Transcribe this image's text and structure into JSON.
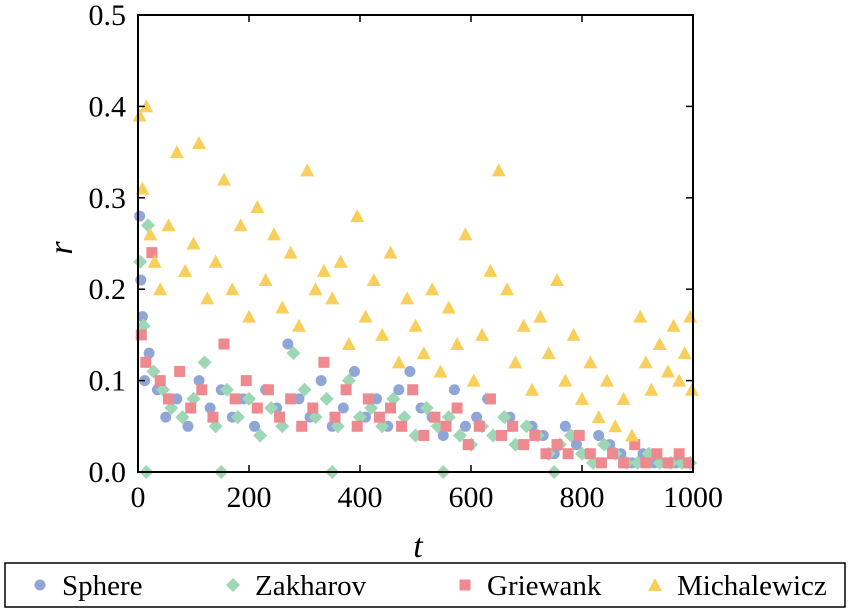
{
  "chart_data": {
    "type": "scatter",
    "title": "",
    "xlabel": "t",
    "ylabel": "r",
    "xlim": [
      0,
      1000
    ],
    "ylim": [
      0,
      0.5
    ],
    "x_ticks": [
      0,
      200,
      400,
      600,
      800,
      1000
    ],
    "y_ticks": [
      0.0,
      0.1,
      0.2,
      0.3,
      0.4,
      0.5
    ],
    "x_tick_labels": [
      "0",
      "200",
      "400",
      "600",
      "800",
      "1000"
    ],
    "y_tick_labels": [
      "0.0",
      "0.1",
      "0.2",
      "0.3",
      "0.4",
      "0.5"
    ],
    "grid": false,
    "legend_position": "bottom",
    "series": [
      {
        "name": "Sphere",
        "marker": "circle",
        "color": "#8FA6D6",
        "points": [
          [
            3,
            0.28
          ],
          [
            5,
            0.21
          ],
          [
            8,
            0.17
          ],
          [
            12,
            0.1
          ],
          [
            20,
            0.13
          ],
          [
            35,
            0.09
          ],
          [
            50,
            0.06
          ],
          [
            70,
            0.08
          ],
          [
            90,
            0.05
          ],
          [
            110,
            0.1
          ],
          [
            130,
            0.07
          ],
          [
            150,
            0.09
          ],
          [
            170,
            0.06
          ],
          [
            190,
            0.08
          ],
          [
            210,
            0.05
          ],
          [
            230,
            0.09
          ],
          [
            250,
            0.07
          ],
          [
            270,
            0.14
          ],
          [
            290,
            0.08
          ],
          [
            310,
            0.06
          ],
          [
            330,
            0.1
          ],
          [
            350,
            0.05
          ],
          [
            370,
            0.07
          ],
          [
            390,
            0.11
          ],
          [
            410,
            0.06
          ],
          [
            430,
            0.08
          ],
          [
            450,
            0.05
          ],
          [
            470,
            0.09
          ],
          [
            490,
            0.11
          ],
          [
            510,
            0.07
          ],
          [
            530,
            0.06
          ],
          [
            550,
            0.04
          ],
          [
            570,
            0.09
          ],
          [
            590,
            0.05
          ],
          [
            610,
            0.06
          ],
          [
            630,
            0.08
          ],
          [
            650,
            0.04
          ],
          [
            670,
            0.06
          ],
          [
            690,
            0.03
          ],
          [
            710,
            0.05
          ],
          [
            730,
            0.04
          ],
          [
            750,
            0.02
          ],
          [
            770,
            0.05
          ],
          [
            790,
            0.03
          ],
          [
            810,
            0.02
          ],
          [
            830,
            0.04
          ],
          [
            850,
            0.03
          ],
          [
            870,
            0.02
          ],
          [
            890,
            0.01
          ],
          [
            910,
            0.02
          ],
          [
            930,
            0.01
          ],
          [
            950,
            0.01
          ],
          [
            970,
            0.01
          ],
          [
            990,
            0.01
          ]
        ]
      },
      {
        "name": "Zakharov",
        "marker": "diamond",
        "color": "#9DD7B5",
        "points": [
          [
            4,
            0.23
          ],
          [
            10,
            0.16
          ],
          [
            18,
            0.27
          ],
          [
            28,
            0.11
          ],
          [
            45,
            0.09
          ],
          [
            60,
            0.07
          ],
          [
            80,
            0.06
          ],
          [
            100,
            0.08
          ],
          [
            120,
            0.12
          ],
          [
            140,
            0.05
          ],
          [
            160,
            0.09
          ],
          [
            180,
            0.06
          ],
          [
            200,
            0.08
          ],
          [
            220,
            0.04
          ],
          [
            240,
            0.07
          ],
          [
            260,
            0.05
          ],
          [
            280,
            0.13
          ],
          [
            300,
            0.09
          ],
          [
            320,
            0.06
          ],
          [
            340,
            0.08
          ],
          [
            360,
            0.05
          ],
          [
            380,
            0.1
          ],
          [
            400,
            0.06
          ],
          [
            420,
            0.07
          ],
          [
            440,
            0.05
          ],
          [
            460,
            0.08
          ],
          [
            480,
            0.06
          ],
          [
            500,
            0.04
          ],
          [
            520,
            0.07
          ],
          [
            540,
            0.05
          ],
          [
            560,
            0.06
          ],
          [
            580,
            0.04
          ],
          [
            600,
            0.03
          ],
          [
            620,
            0.05
          ],
          [
            640,
            0.04
          ],
          [
            660,
            0.06
          ],
          [
            680,
            0.03
          ],
          [
            700,
            0.05
          ],
          [
            720,
            0.04
          ],
          [
            740,
            0.02
          ],
          [
            760,
            0.03
          ],
          [
            780,
            0.04
          ],
          [
            800,
            0.02
          ],
          [
            820,
            0.01
          ],
          [
            840,
            0.03
          ],
          [
            860,
            0.02
          ],
          [
            880,
            0.01
          ],
          [
            900,
            0.01
          ],
          [
            920,
            0.02
          ],
          [
            940,
            0.01
          ],
          [
            960,
            0.01
          ],
          [
            980,
            0.01
          ],
          [
            995,
            0.01
          ],
          [
            15,
            0.0
          ],
          [
            150,
            0.0
          ],
          [
            350,
            0.0
          ],
          [
            550,
            0.0
          ],
          [
            750,
            0.0
          ]
        ]
      },
      {
        "name": "Griewank",
        "marker": "square",
        "color": "#EE8A8F",
        "points": [
          [
            6,
            0.15
          ],
          [
            14,
            0.12
          ],
          [
            25,
            0.24
          ],
          [
            40,
            0.1
          ],
          [
            55,
            0.08
          ],
          [
            75,
            0.11
          ],
          [
            95,
            0.07
          ],
          [
            115,
            0.09
          ],
          [
            135,
            0.06
          ],
          [
            155,
            0.14
          ],
          [
            175,
            0.08
          ],
          [
            195,
            0.1
          ],
          [
            215,
            0.07
          ],
          [
            235,
            0.09
          ],
          [
            255,
            0.06
          ],
          [
            275,
            0.08
          ],
          [
            295,
            0.05
          ],
          [
            315,
            0.07
          ],
          [
            335,
            0.12
          ],
          [
            355,
            0.06
          ],
          [
            375,
            0.09
          ],
          [
            395,
            0.05
          ],
          [
            415,
            0.08
          ],
          [
            435,
            0.06
          ],
          [
            455,
            0.07
          ],
          [
            475,
            0.05
          ],
          [
            495,
            0.09
          ],
          [
            515,
            0.04
          ],
          [
            535,
            0.06
          ],
          [
            555,
            0.05
          ],
          [
            575,
            0.07
          ],
          [
            595,
            0.03
          ],
          [
            615,
            0.05
          ],
          [
            635,
            0.08
          ],
          [
            655,
            0.04
          ],
          [
            675,
            0.05
          ],
          [
            695,
            0.03
          ],
          [
            715,
            0.04
          ],
          [
            735,
            0.02
          ],
          [
            755,
            0.03
          ],
          [
            775,
            0.02
          ],
          [
            795,
            0.04
          ],
          [
            815,
            0.02
          ],
          [
            835,
            0.01
          ],
          [
            855,
            0.02
          ],
          [
            875,
            0.01
          ],
          [
            895,
            0.03
          ],
          [
            915,
            0.01
          ],
          [
            935,
            0.02
          ],
          [
            955,
            0.01
          ],
          [
            975,
            0.02
          ],
          [
            992,
            0.01
          ]
        ]
      },
      {
        "name": "Michalewicz",
        "marker": "triangle",
        "color": "#F9CF5B",
        "points": [
          [
            3,
            0.39
          ],
          [
            8,
            0.31
          ],
          [
            15,
            0.4
          ],
          [
            22,
            0.26
          ],
          [
            30,
            0.23
          ],
          [
            40,
            0.2
          ],
          [
            55,
            0.27
          ],
          [
            70,
            0.35
          ],
          [
            85,
            0.22
          ],
          [
            100,
            0.25
          ],
          [
            110,
            0.36
          ],
          [
            125,
            0.19
          ],
          [
            140,
            0.23
          ],
          [
            155,
            0.32
          ],
          [
            170,
            0.2
          ],
          [
            185,
            0.27
          ],
          [
            200,
            0.17
          ],
          [
            215,
            0.29
          ],
          [
            230,
            0.21
          ],
          [
            245,
            0.26
          ],
          [
            260,
            0.18
          ],
          [
            275,
            0.24
          ],
          [
            290,
            0.16
          ],
          [
            305,
            0.33
          ],
          [
            320,
            0.2
          ],
          [
            335,
            0.22
          ],
          [
            350,
            0.19
          ],
          [
            365,
            0.23
          ],
          [
            380,
            0.14
          ],
          [
            395,
            0.28
          ],
          [
            410,
            0.17
          ],
          [
            425,
            0.21
          ],
          [
            440,
            0.15
          ],
          [
            455,
            0.24
          ],
          [
            470,
            0.12
          ],
          [
            485,
            0.19
          ],
          [
            500,
            0.16
          ],
          [
            515,
            0.13
          ],
          [
            530,
            0.2
          ],
          [
            545,
            0.11
          ],
          [
            560,
            0.18
          ],
          [
            575,
            0.14
          ],
          [
            590,
            0.26
          ],
          [
            605,
            0.1
          ],
          [
            620,
            0.15
          ],
          [
            635,
            0.22
          ],
          [
            650,
            0.33
          ],
          [
            665,
            0.2
          ],
          [
            680,
            0.12
          ],
          [
            695,
            0.16
          ],
          [
            710,
            0.09
          ],
          [
            725,
            0.17
          ],
          [
            740,
            0.13
          ],
          [
            755,
            0.21
          ],
          [
            770,
            0.1
          ],
          [
            785,
            0.15
          ],
          [
            800,
            0.08
          ],
          [
            815,
            0.12
          ],
          [
            830,
            0.06
          ],
          [
            845,
            0.1
          ],
          [
            860,
            0.05
          ],
          [
            875,
            0.08
          ],
          [
            890,
            0.04
          ],
          [
            905,
            0.17
          ],
          [
            915,
            0.12
          ],
          [
            925,
            0.09
          ],
          [
            940,
            0.14
          ],
          [
            955,
            0.11
          ],
          [
            965,
            0.16
          ],
          [
            975,
            0.1
          ],
          [
            985,
            0.13
          ],
          [
            995,
            0.17
          ],
          [
            998,
            0.09
          ]
        ]
      }
    ]
  }
}
